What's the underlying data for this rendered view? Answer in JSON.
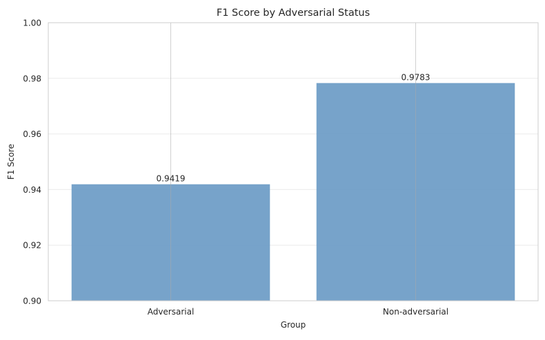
{
  "chart_data": {
    "type": "bar",
    "title": "F1 Score by Adversarial Status",
    "xlabel": "Group",
    "ylabel": "F1 Score",
    "categories": [
      "Adversarial",
      "Non-adversarial"
    ],
    "values": [
      0.9419,
      0.9783
    ],
    "value_labels": [
      "0.9419",
      "0.9783"
    ],
    "ylim": [
      0.9,
      1.0
    ],
    "yticks": [
      "0.90",
      "0.92",
      "0.94",
      "0.96",
      "0.98",
      "1.00"
    ],
    "grid": true,
    "bar_color": "#6b9bc6"
  }
}
